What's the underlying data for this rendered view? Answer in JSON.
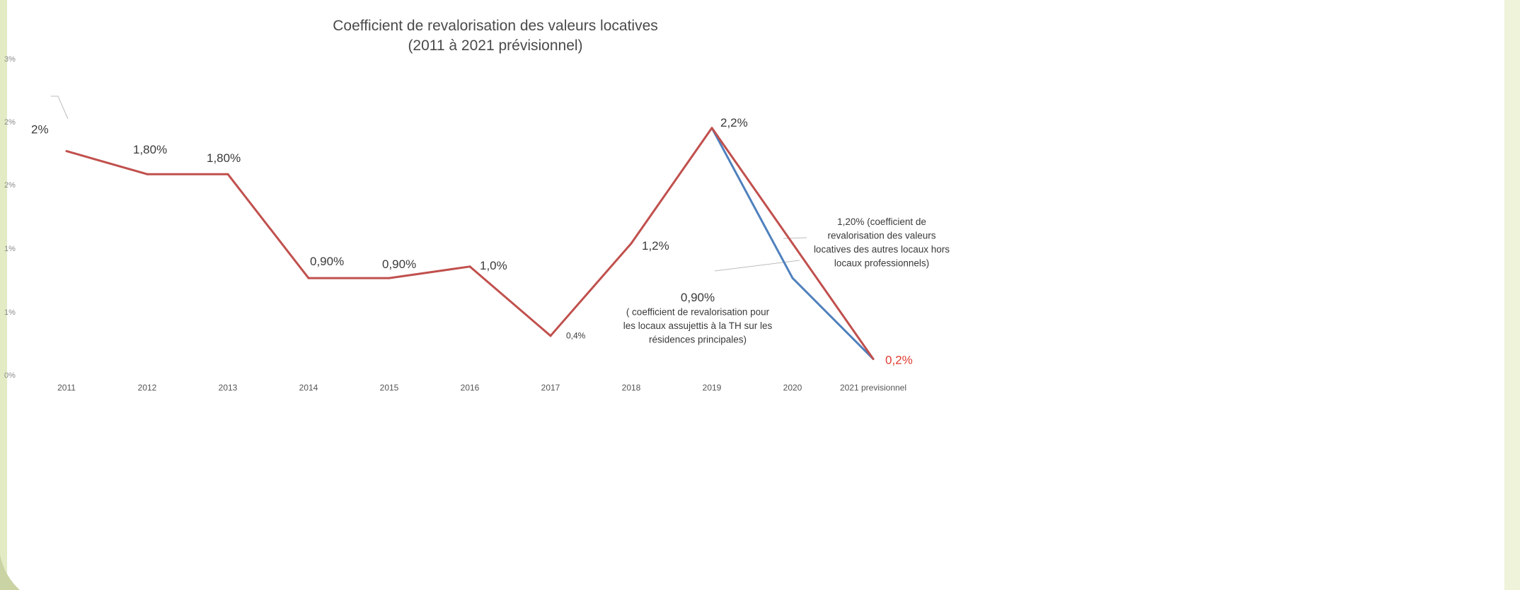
{
  "chart_data": {
    "type": "line",
    "title": [
      "Coefficient de revalorisation des valeurs locatives",
      "(2011 à 2021 prévisionnel)"
    ],
    "categories": [
      "2011",
      "2012",
      "2013",
      "2014",
      "2015",
      "2016",
      "2017",
      "2018",
      "2019",
      "2020",
      "2021 previsionnel"
    ],
    "y_ticks": [
      "3%",
      "2%",
      "2%",
      "1%",
      "1%",
      "0%"
    ],
    "ylim": [
      0,
      2.8
    ],
    "grid": false,
    "series": [
      {
        "color": "#c0504d",
        "values": [
          2.0,
          1.8,
          1.8,
          0.9,
          0.9,
          1.0,
          0.4,
          1.2,
          2.2,
          1.2,
          0.2
        ]
      },
      {
        "color": "#4f81bd",
        "values": [
          null,
          null,
          null,
          null,
          null,
          null,
          null,
          null,
          2.2,
          0.9,
          0.2
        ]
      }
    ],
    "data_labels": [
      "2%",
      "1,80%",
      "1,80%",
      "0,90%",
      "0,90%",
      "1,0%",
      "0,4%",
      "1,2%",
      "2,2%",
      "0,2%"
    ],
    "annotations": [
      {
        "lines": [
          "1,20% (coefficient de",
          "revalorisation des valeurs",
          "locatives des autres locaux hors",
          "locaux professionnels)"
        ]
      },
      {
        "lines": [
          "0,90%",
          "( coefficient de revalorisation pour",
          "les locaux assujettis à la TH sur les",
          "résidences principales)"
        ]
      }
    ]
  }
}
